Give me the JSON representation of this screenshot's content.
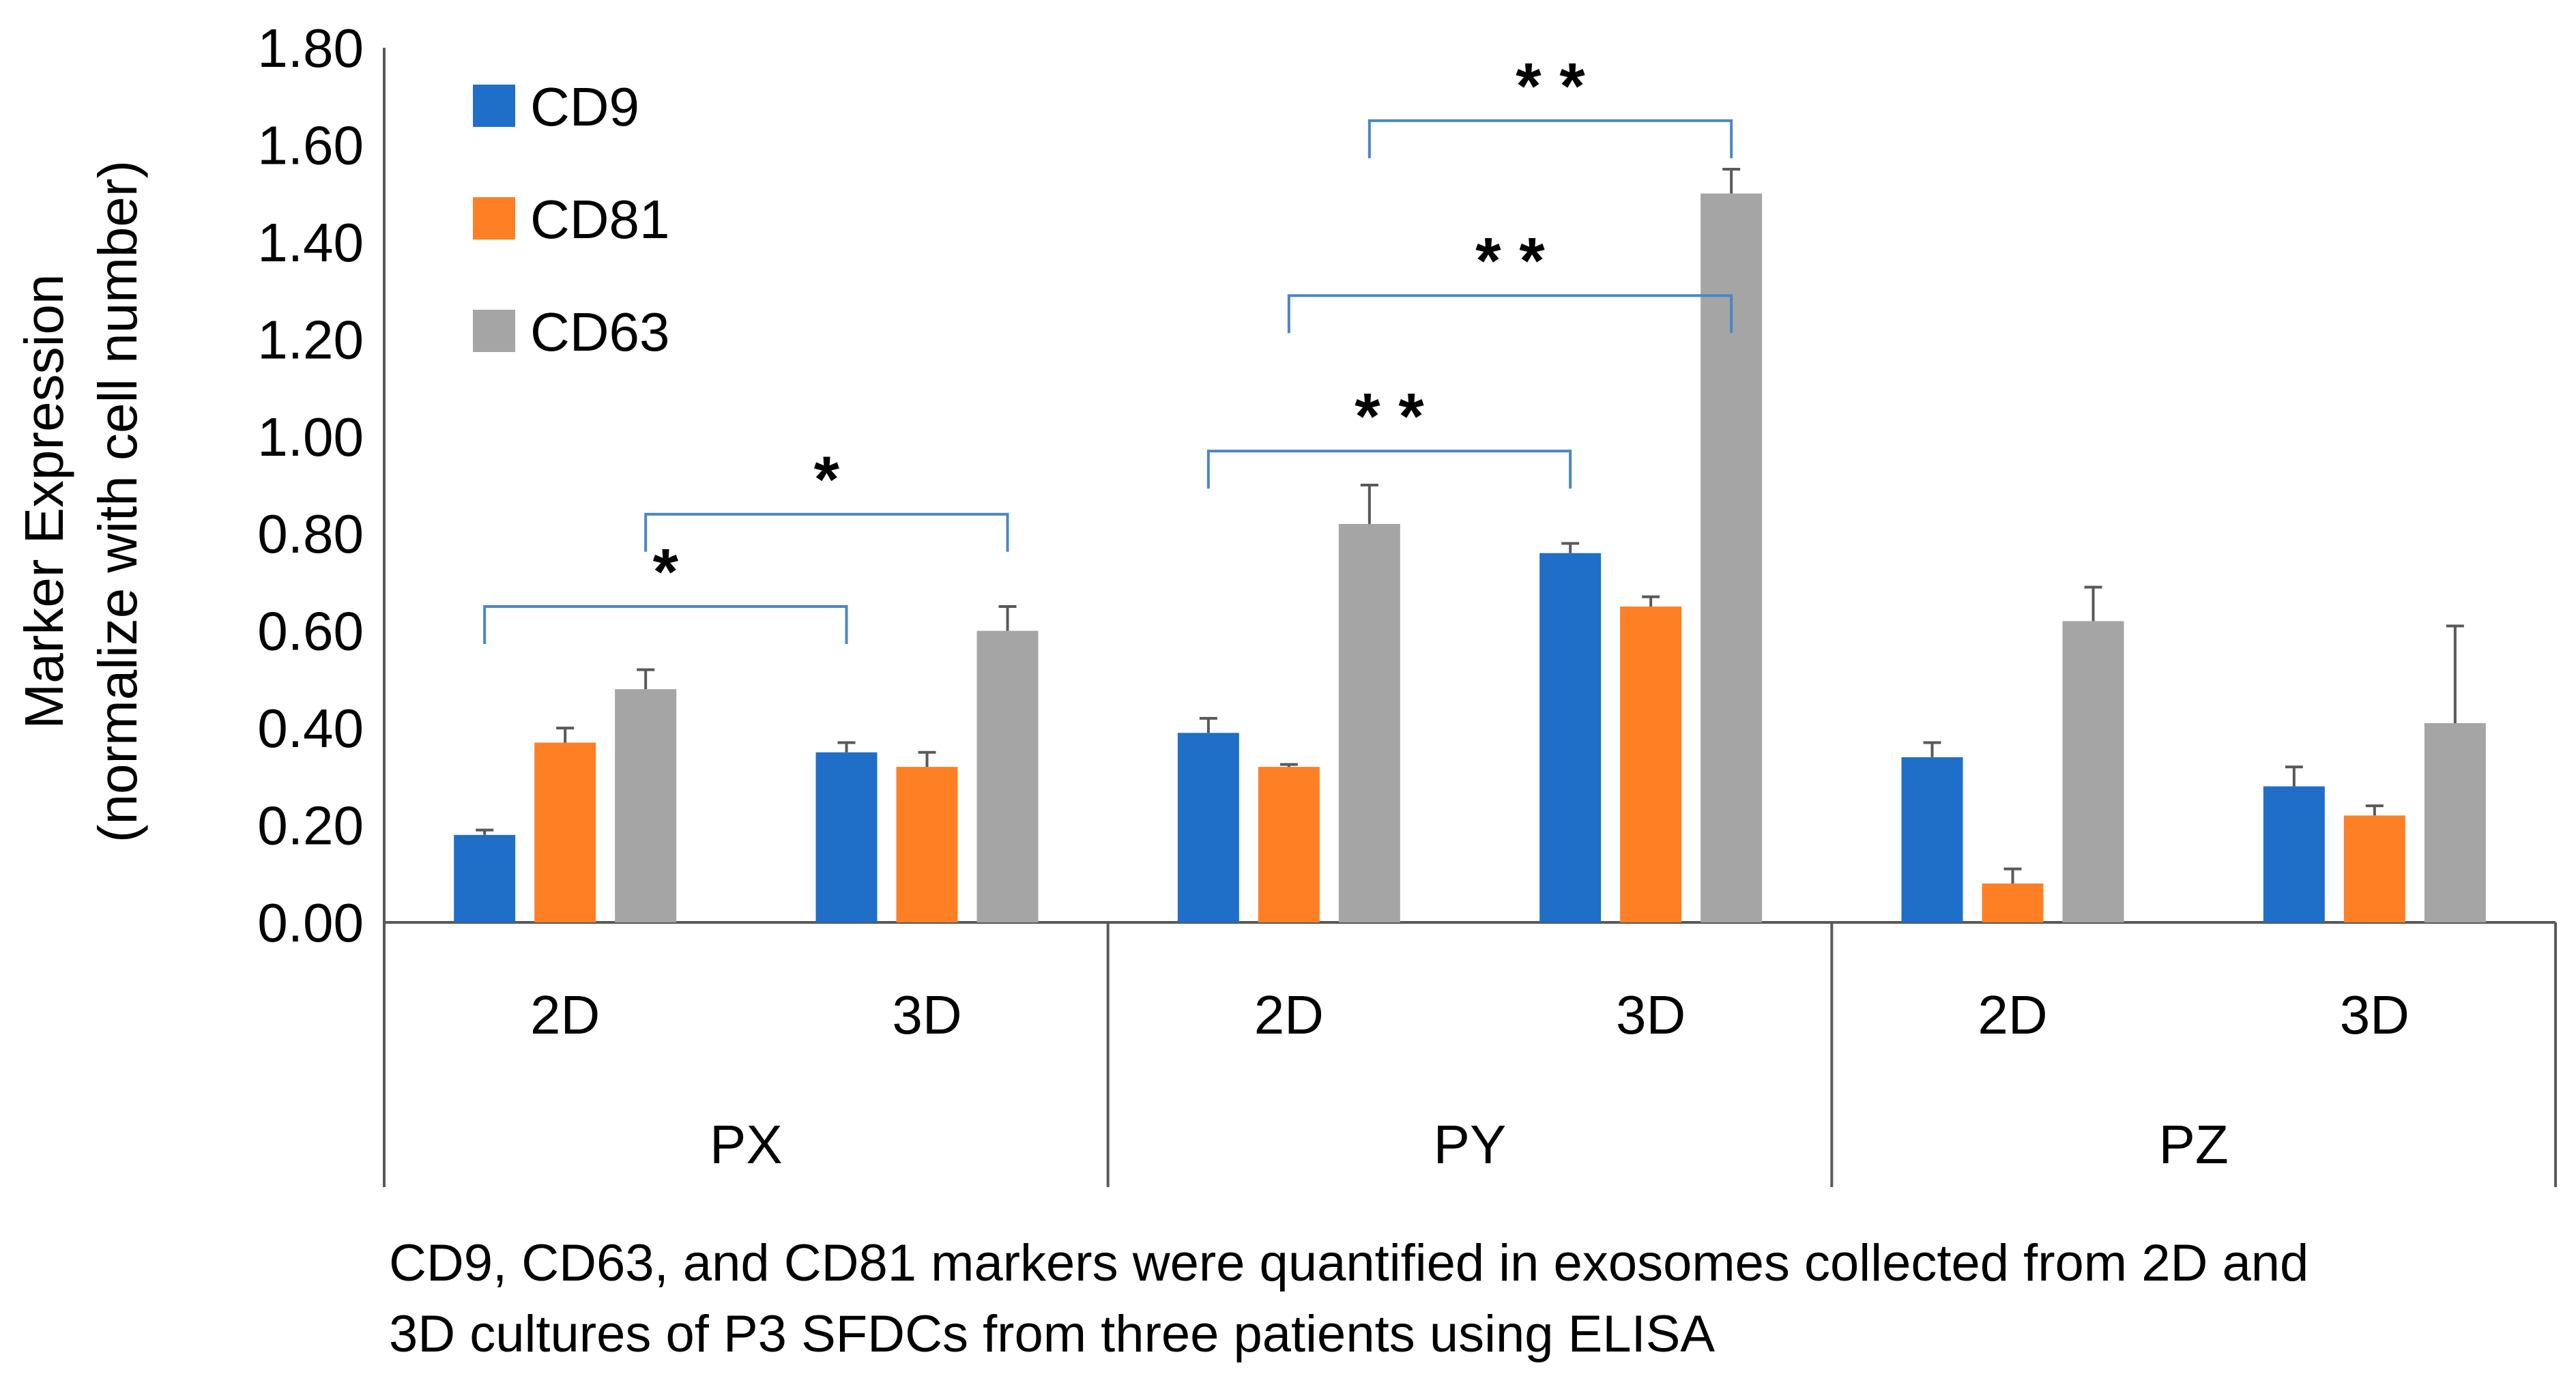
{
  "chart_data": {
    "type": "bar",
    "ylabel": "Marker Expression",
    "ylabel2": "(normalize with cell number)",
    "ylim": [
      0,
      1.8
    ],
    "yticks": [
      "0.00",
      "0.20",
      "0.40",
      "0.60",
      "0.80",
      "1.00",
      "1.20",
      "1.40",
      "1.60",
      "1.80"
    ],
    "grid": false,
    "legend_position": "top-left",
    "groups": [
      {
        "label": "PX",
        "categories": [
          "2D",
          "3D"
        ]
      },
      {
        "label": "PY",
        "categories": [
          "2D",
          "3D"
        ]
      },
      {
        "label": "PZ",
        "categories": [
          "2D",
          "3D"
        ]
      }
    ],
    "series": [
      {
        "name": "CD9",
        "color": "#1f6fc8",
        "values": [
          0.18,
          0.35,
          0.39,
          0.76,
          0.34,
          0.28
        ],
        "errors": [
          0.01,
          0.02,
          0.03,
          0.02,
          0.03,
          0.04
        ]
      },
      {
        "name": "CD81",
        "color": "#ff7f24",
        "values": [
          0.37,
          0.32,
          0.32,
          0.65,
          0.08,
          0.22
        ],
        "errors": [
          0.03,
          0.03,
          0.005,
          0.02,
          0.03,
          0.02
        ]
      },
      {
        "name": "CD63",
        "color": "#a5a5a5",
        "values": [
          0.48,
          0.6,
          0.82,
          1.5,
          0.62,
          0.41
        ],
        "errors": [
          0.04,
          0.05,
          0.08,
          0.05,
          0.07,
          0.2
        ]
      }
    ],
    "annotations": [
      {
        "label": "*",
        "from": [
          0,
          0
        ],
        "to": [
          1,
          0
        ],
        "level": 0.65
      },
      {
        "label": "*",
        "from": [
          0,
          2
        ],
        "to": [
          1,
          2
        ],
        "level": 0.84
      },
      {
        "label": "* *",
        "from": [
          2,
          0
        ],
        "to": [
          3,
          0
        ],
        "level": 0.97
      },
      {
        "label": "* *",
        "from": [
          2,
          1
        ],
        "to": [
          3,
          2
        ],
        "level": 1.29
      },
      {
        "label": "* *",
        "from": [
          2,
          2
        ],
        "to": [
          3,
          2
        ],
        "level": 1.65
      }
    ]
  },
  "caption": {
    "line1": "CD9, CD63, and CD81 markers were quantified in exosomes collected from 2D and",
    "line2": "3D cultures of P3 SFDCs from three patients using ELISA"
  },
  "colors": {
    "axis": "#595959",
    "bracket": "#4a86c8",
    "text": "#000000"
  }
}
